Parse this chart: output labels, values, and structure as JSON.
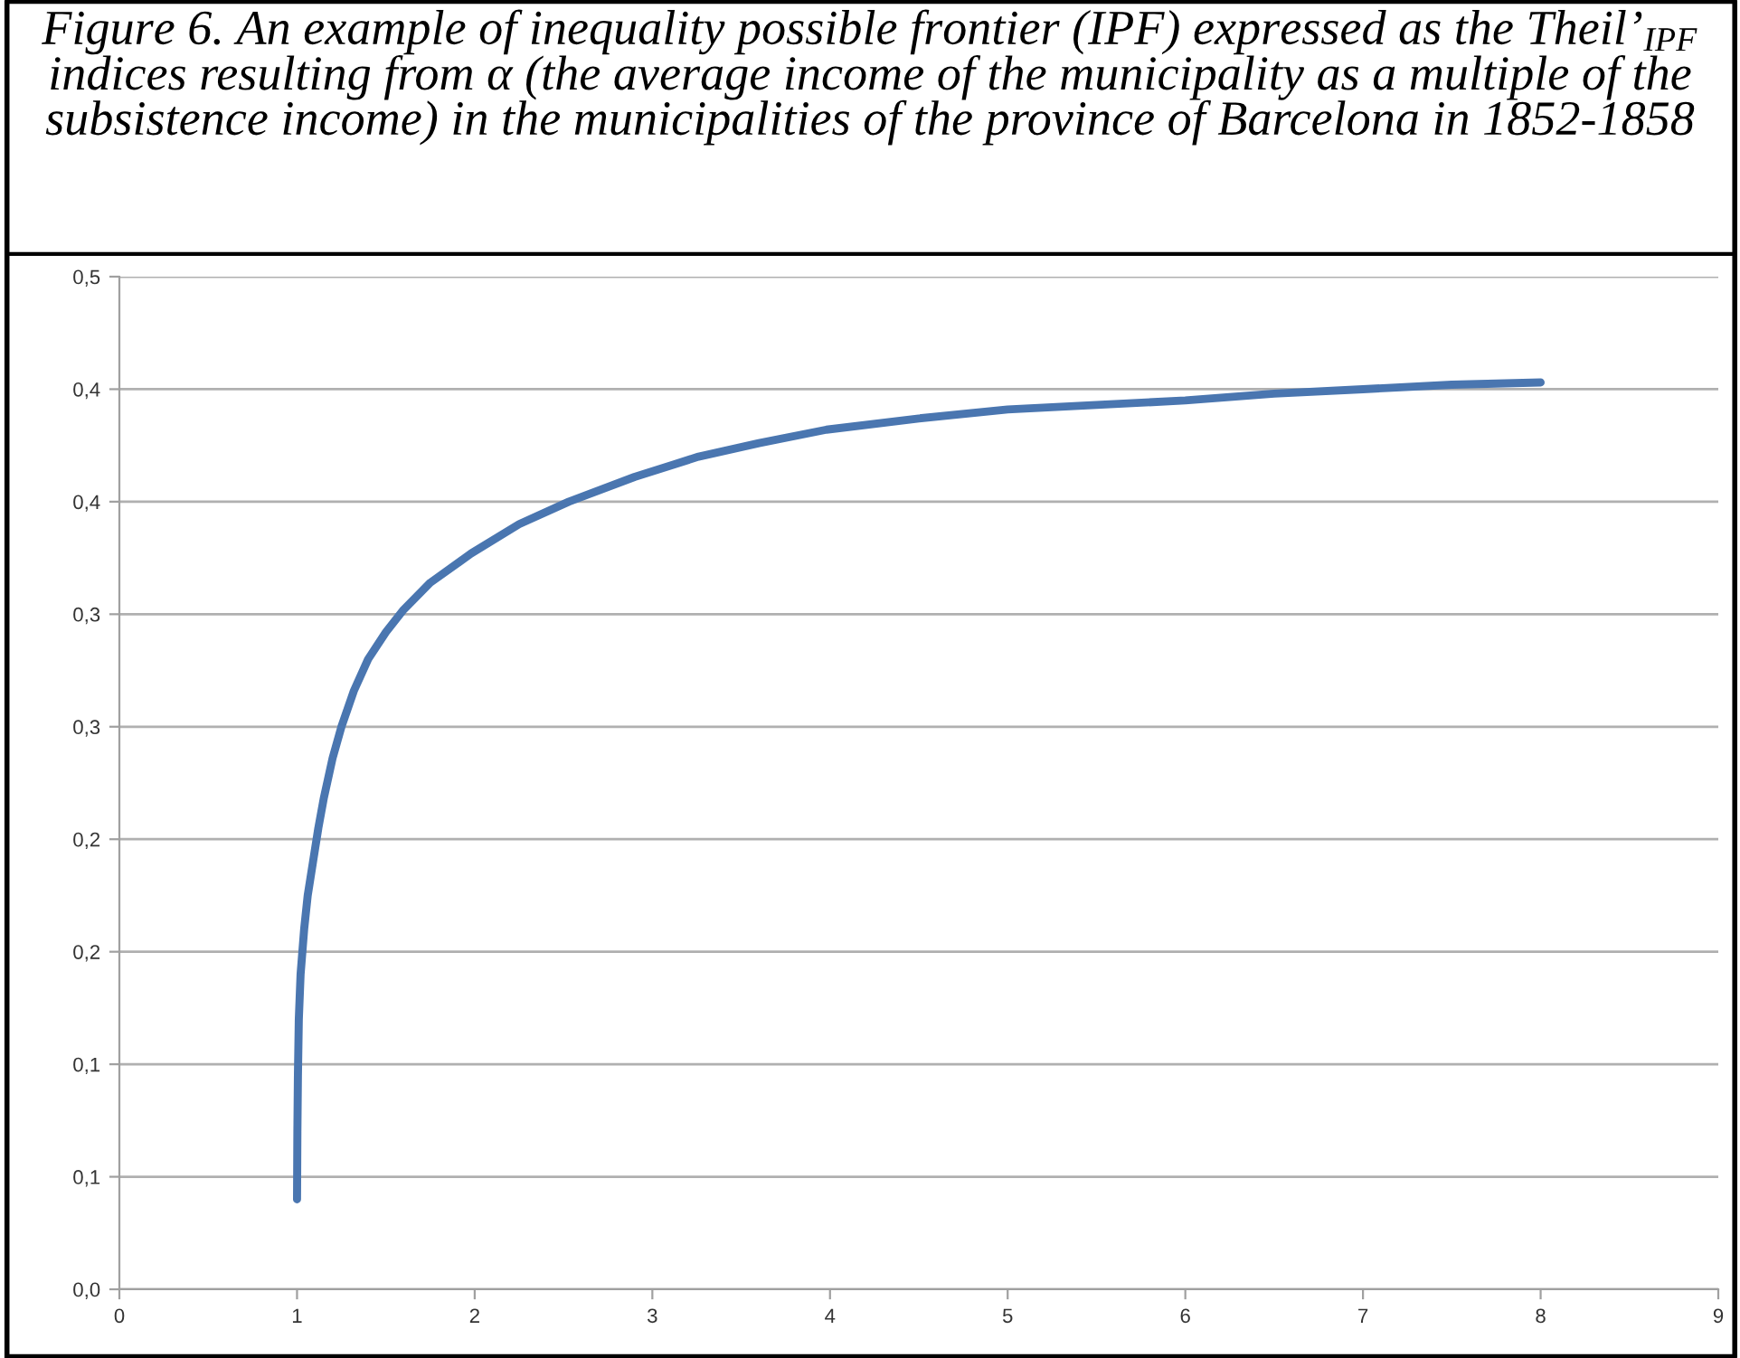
{
  "chart_data": {
    "type": "line",
    "title": "Figure 6. An example of inequality possible frontier (IPF) expressed as the Theil’$_{IPF}$ indices resulting from α (the average income of the municipality as a multiple of the subsistence income) in the municipalities of the province of Barcelona in 1852-1858",
    "series": [
      {
        "color": "#4a76b0",
        "x": [
          1.0,
          1.002,
          1.005,
          1.01,
          1.02,
          1.04,
          1.06,
          1.09,
          1.12,
          1.15,
          1.2,
          1.25,
          1.32,
          1.4,
          1.5,
          1.6,
          1.75,
          1.98,
          2.25,
          2.53,
          2.9,
          3.26,
          3.6,
          3.98,
          4.5,
          5.0,
          5.5,
          6.0,
          6.5,
          7.0,
          7.5,
          8.0
        ],
        "values": [
          0.04,
          0.07,
          0.095,
          0.12,
          0.14,
          0.16,
          0.175,
          0.19,
          0.205,
          0.218,
          0.236,
          0.25,
          0.266,
          0.28,
          0.292,
          0.302,
          0.314,
          0.327,
          0.34,
          0.35,
          0.361,
          0.37,
          0.376,
          0.382,
          0.387,
          0.391,
          0.393,
          0.395,
          0.398,
          0.4,
          0.402,
          0.403
        ]
      }
    ],
    "xlim": [
      0,
      9
    ],
    "xticks": [
      0,
      1,
      2,
      3,
      4,
      5,
      6,
      7,
      8,
      9
    ],
    "ylim": [
      0,
      0.45
    ],
    "yticks": [
      {
        "value": 0,
        "label": "0,0"
      },
      {
        "value": 0.05,
        "label": "0,1"
      },
      {
        "value": 0.1,
        "label": "0,1"
      },
      {
        "value": 0.15,
        "label": "0,2"
      },
      {
        "value": 0.2,
        "label": "0,2"
      },
      {
        "value": 0.25,
        "label": "0,3"
      },
      {
        "value": 0.3,
        "label": "0,3"
      },
      {
        "value": 0.35,
        "label": "0,4"
      },
      {
        "value": 0.4,
        "label": "0,4"
      },
      {
        "value": 0.45,
        "label": "0,5"
      }
    ],
    "grid": "y",
    "marker": "none",
    "line_style": "solid",
    "legend": false
  }
}
